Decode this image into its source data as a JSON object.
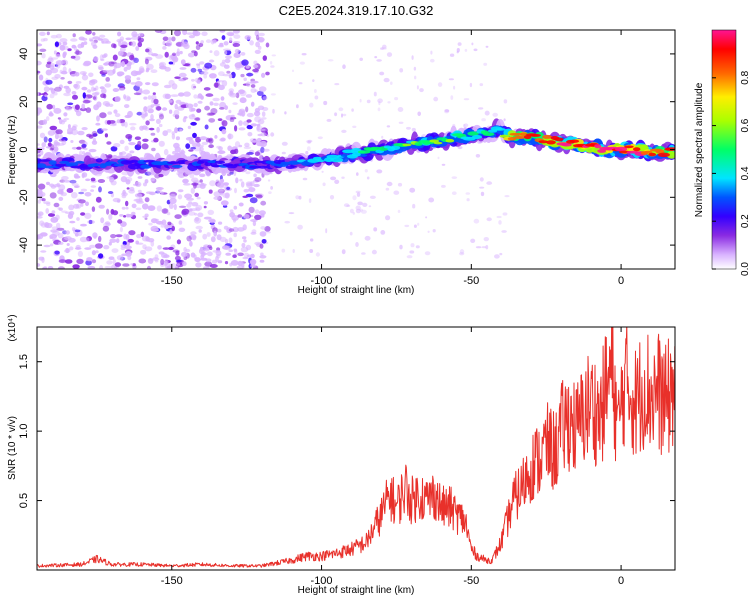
{
  "title": "C2E5.2024.319.17.10.G32",
  "colors": {
    "snr_line": "#e8302a",
    "colormap": [
      "#ffffff",
      "#d9b3ff",
      "#8a2be2",
      "#3300ff",
      "#0055ff",
      "#00e5ff",
      "#00ff66",
      "#aaff00",
      "#ffee00",
      "#ff6600",
      "#ff0000",
      "#ff1493"
    ]
  },
  "chart_data": [
    {
      "type": "heatmap",
      "xlabel": "Height of straight line (km)",
      "ylabel": "Frequency (Hz)",
      "xlim": [
        -195,
        18
      ],
      "ylim": [
        -50,
        50
      ],
      "x_ticks": [
        "-150",
        "-100",
        "-50",
        "0"
      ],
      "y_ticks": [
        "-40",
        "-20",
        "0",
        "20",
        "40"
      ],
      "grid": false,
      "colorbar": {
        "label": "Normalized spectral amplitude",
        "range": [
          0,
          1
        ],
        "ticks": [
          "0.0",
          "0.2",
          "0.4",
          "0.6",
          "0.8"
        ]
      },
      "ridge": {
        "x": [
          -195,
          -160,
          -130,
          -110,
          -100,
          -90,
          -80,
          -70,
          -60,
          -50,
          -45,
          -40,
          -38,
          -35,
          -30,
          -25,
          -20,
          -15,
          -10,
          -5,
          0,
          5,
          10,
          15,
          18
        ],
        "y": [
          -6,
          -6,
          -6,
          -6,
          -4,
          -2,
          0,
          2,
          4,
          6,
          7,
          8,
          6,
          5,
          5,
          4,
          3,
          2,
          1,
          0,
          0,
          0,
          -1,
          -1,
          -1
        ],
        "amplitude": [
          0.3,
          0.3,
          0.28,
          0.35,
          0.4,
          0.5,
          0.5,
          0.55,
          0.55,
          0.5,
          0.5,
          0.45,
          0.7,
          0.85,
          0.85,
          0.85,
          0.9,
          0.95,
          0.95,
          0.95,
          0.95,
          0.95,
          0.9,
          0.9,
          0.9
        ]
      },
      "noise_region_x": [
        -195,
        -118
      ]
    },
    {
      "type": "line",
      "xlabel": "Height of straight line (km)",
      "ylabel": "SNR (10 * v/v)",
      "multiplier": "(x10⁴)",
      "xlim": [
        -195,
        18
      ],
      "ylim": [
        0,
        1.75
      ],
      "x_ticks": [
        "-150",
        "-100",
        "-50",
        "0"
      ],
      "y_ticks": [
        "0.5",
        "1.0",
        "1.5"
      ],
      "grid": false,
      "series": [
        {
          "x": [
            -195,
            -180,
            -175,
            -170,
            -160,
            -150,
            -140,
            -130,
            -120,
            -115,
            -110,
            -105,
            -100,
            -95,
            -90,
            -85,
            -80,
            -77,
            -75,
            -72,
            -70,
            -67,
            -65,
            -62,
            -60,
            -57,
            -55,
            -52,
            -50,
            -48,
            -45,
            -43,
            -40,
            -38,
            -36,
            -33,
            -30,
            -27,
            -25,
            -22,
            -20,
            -17,
            -15,
            -12,
            -10,
            -7,
            -5,
            -3,
            -1,
            1,
            3,
            5,
            8,
            10,
            12,
            15,
            18
          ],
          "y": [
            0.03,
            0.04,
            0.08,
            0.04,
            0.04,
            0.03,
            0.04,
            0.03,
            0.03,
            0.05,
            0.07,
            0.1,
            0.1,
            0.12,
            0.15,
            0.2,
            0.4,
            0.55,
            0.45,
            0.6,
            0.5,
            0.55,
            0.5,
            0.55,
            0.45,
            0.45,
            0.4,
            0.35,
            0.15,
            0.1,
            0.07,
            0.07,
            0.2,
            0.35,
            0.5,
            0.6,
            0.75,
            0.8,
            0.9,
            0.85,
            1.0,
            1.1,
            1.0,
            1.15,
            1.2,
            1.1,
            1.3,
            1.45,
            1.0,
            1.35,
            1.3,
            1.2,
            1.35,
            1.25,
            1.3,
            1.2,
            1.35
          ]
        }
      ]
    }
  ]
}
